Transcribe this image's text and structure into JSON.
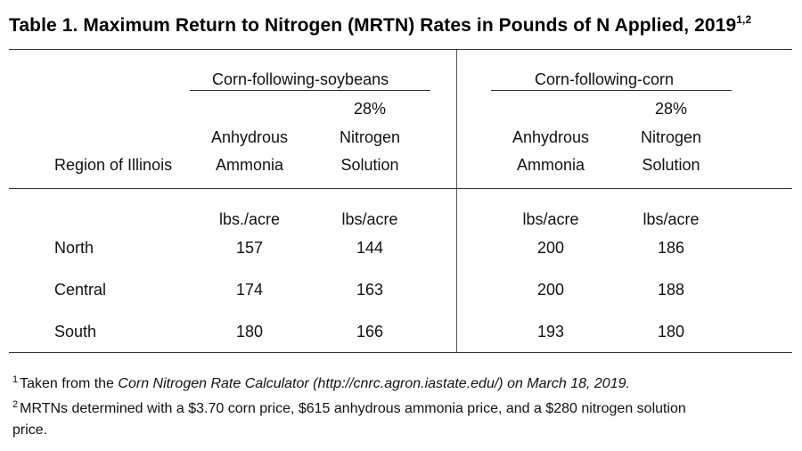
{
  "table": {
    "title": "Table 1.  Maximum Return to Nitrogen (MRTN) Rates in Pounds of N Applied, 2019",
    "title_superscript": "1,2",
    "group_headers": [
      "Corn-following-soybeans",
      "Corn-following-corn"
    ],
    "region_header": "Region of Illinois",
    "column_headers": [
      {
        "line1": "",
        "line2": "Anhydrous",
        "line3": "Ammonia"
      },
      {
        "line1": "28%",
        "line2": "Nitrogen",
        "line3": "Solution"
      },
      {
        "line1": "",
        "line2": "Anhydrous",
        "line3": "Ammonia"
      },
      {
        "line1": "28%",
        "line2": "Nitrogen",
        "line3": "Solution"
      }
    ],
    "units": [
      "lbs./acre",
      "lbs/acre",
      "lbs/acre",
      "lbs/acre"
    ],
    "rows": [
      {
        "region": "North",
        "values": [
          "157",
          "144",
          "200",
          "186"
        ]
      },
      {
        "region": "Central",
        "values": [
          "174",
          "163",
          "200",
          "188"
        ]
      },
      {
        "region": "South",
        "values": [
          "180",
          "166",
          "193",
          "180"
        ]
      }
    ]
  },
  "footnotes": {
    "fn1_marker": "1",
    "fn1_pre": "Taken from the ",
    "fn1_italic": "Corn Nitrogen Rate Calculator (http://cnrc.agron.iastate.edu/) on March 18, 2019.",
    "fn2_marker": "2",
    "fn2_line1": "MRTNs determined with a $3.70 corn price, $615 anhydrous ammonia price, and a $280 nitrogen solution",
    "fn2_line2": "price."
  }
}
